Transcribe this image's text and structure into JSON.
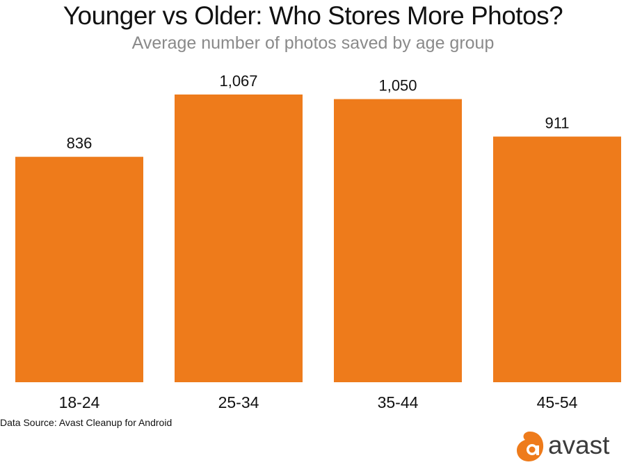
{
  "chart_data": {
    "type": "bar",
    "title": "Younger vs Older: Who Stores More Photos?",
    "subtitle": "Average number of photos saved by age group",
    "categories": [
      "18-24",
      "25-34",
      "35-44",
      "45-54"
    ],
    "values": [
      836,
      1067,
      1050,
      911
    ],
    "value_labels": [
      "836",
      "1,067",
      "1,050",
      "911"
    ],
    "xlabel": "",
    "ylabel": "",
    "ylim": [
      0,
      1067
    ],
    "grid": false,
    "bar_color": "#ee7b1b"
  },
  "footer": {
    "source": "Data Source: Avast Cleanup for Android"
  },
  "logo": {
    "name": "avast-logo",
    "text": "avast",
    "color": "#ee7b1b"
  }
}
